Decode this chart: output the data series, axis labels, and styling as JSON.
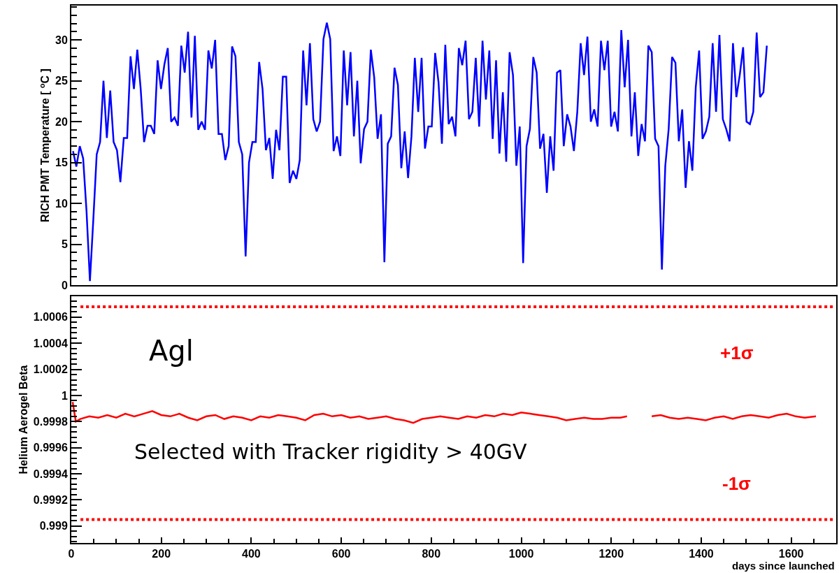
{
  "chart_data": [
    {
      "type": "line",
      "ylabel": "RICH PMT Temperature [ $^{o}$C ]",
      "categories": [
        null,
        null,
        null,
        null,
        null,
        null,
        null,
        null,
        null,
        null,
        null,
        null,
        null,
        null,
        null,
        null,
        null,
        null,
        null,
        null,
        null,
        null,
        null,
        null,
        null,
        null,
        null,
        null,
        null,
        null,
        null,
        null,
        null,
        null,
        null,
        null,
        null,
        null,
        null,
        null,
        null,
        null,
        null,
        null,
        null,
        null,
        null,
        null,
        null,
        null,
        null,
        null,
        null,
        null,
        null,
        null,
        null,
        null,
        null,
        null,
        null,
        null,
        null,
        null,
        null,
        null,
        null,
        null,
        null,
        null,
        null,
        null,
        null,
        null,
        null,
        null,
        null,
        null,
        null,
        null,
        null,
        null,
        null,
        null,
        null,
        null,
        null,
        null,
        null,
        null,
        null,
        null,
        null,
        null,
        null,
        null,
        null,
        null,
        null,
        null,
        null,
        null,
        null,
        null,
        null,
        null,
        null,
        null,
        null,
        null,
        null,
        null,
        null,
        null,
        null,
        null,
        null,
        null,
        null,
        null,
        null,
        null,
        null,
        null,
        null,
        null,
        null,
        null,
        null,
        null,
        null,
        null,
        null,
        null,
        null,
        null,
        null,
        null,
        null,
        null,
        null,
        null,
        null,
        null,
        null,
        null,
        null,
        null,
        null,
        null,
        null,
        null,
        null,
        null,
        null,
        null,
        null,
        null,
        null,
        null,
        null,
        null,
        null,
        null,
        null,
        null,
        null,
        null,
        null,
        null,
        null,
        null,
        null,
        null,
        null,
        null,
        null,
        null,
        null,
        null,
        null,
        null,
        null,
        null,
        null,
        null,
        null,
        null,
        null,
        null,
        null,
        null,
        null,
        null,
        null,
        null,
        null,
        null,
        null,
        null,
        null,
        null,
        null,
        null,
        null,
        null,
        null,
        null,
        null,
        null,
        null,
        null,
        null,
        null,
        null,
        null,
        null,
        null,
        null,
        null,
        null,
        null,
        null,
        null,
        null,
        null
      ],
      "ylim": [
        0,
        34.2
      ],
      "yticks": [
        0,
        5,
        10,
        15,
        20,
        25,
        30
      ],
      "tick_labels": "y",
      "marker": "none",
      "line_style": "solid",
      "series": [
        {
          "color": "#0000ff",
          "values": [
            16.4,
            14.5,
            17.0,
            15.5,
            9,
            0.5,
            8,
            16,
            17.5,
            25,
            18,
            23.8,
            17.5,
            16.5,
            12.6,
            18,
            18,
            28,
            24,
            28.8,
            24,
            17.5,
            19.5,
            19.5,
            18.5,
            27.5,
            24,
            27,
            29,
            20,
            20.5,
            19.5,
            29.3,
            26,
            31,
            20.5,
            30.5,
            19,
            20,
            19,
            28.7,
            26.5,
            30,
            18.5,
            18.5,
            15.3,
            17,
            29.2,
            28,
            17.5,
            16,
            3.5,
            15,
            17.5,
            17.5,
            27.3,
            24,
            16.5,
            18,
            13,
            19,
            16.5,
            25.5,
            25.5,
            12.5,
            14,
            13,
            15.3,
            28.7,
            22,
            29.6,
            20.3,
            18.8,
            20,
            30.1,
            32.1,
            30.1,
            16.4,
            18.2,
            15.8,
            28.7,
            22,
            28.5,
            18.2,
            25,
            14.9,
            19.1,
            20,
            28.8,
            25.4,
            17.9,
            20.9,
            2.8,
            17.3,
            18.2,
            26.6,
            24.5,
            14.3,
            18.8,
            13.1,
            18.2,
            27.8,
            21.2,
            27.8,
            16.7,
            19.4,
            19.4,
            28.4,
            24.8,
            17.3,
            29.4,
            19.7,
            20.6,
            18.2,
            29,
            26.9,
            29.9,
            20.3,
            21.2,
            27.8,
            19.4,
            29.9,
            22.7,
            28.7,
            17.9,
            27.5,
            16.1,
            23.6,
            15.1,
            28.5,
            25.7,
            14.6,
            19.4,
            2.7,
            17,
            19.1,
            27.9,
            26,
            16.7,
            18.5,
            11.3,
            18.2,
            14,
            26,
            26.3,
            17,
            20.9,
            19.4,
            16.4,
            21.2,
            29.6,
            25.7,
            30.4,
            20,
            21.5,
            19.4,
            29.9,
            26.3,
            29.9,
            19.4,
            21.2,
            18.8,
            31.2,
            24.2,
            30,
            18.2,
            23.6,
            15.8,
            19.7,
            17.6,
            29.3,
            28.5,
            17.9,
            17,
            1.9,
            14.6,
            19.1,
            27.9,
            27.2,
            17.6,
            21.5,
            11.9,
            17.6,
            14,
            24.2,
            28.7,
            17.9,
            18.8,
            20.6,
            29.6,
            21.2,
            30.6,
            20.3,
            19.1,
            17.6,
            29.6,
            23,
            25.7,
            29.1,
            20,
            19.7,
            21.2,
            30.9,
            23,
            23.6,
            29.3,
            null,
            null,
            null,
            null,
            null,
            null,
            null,
            null,
            null,
            null,
            null,
            null,
            null,
            null,
            null,
            null,
            null,
            null,
            null,
            null
          ]
        }
      ]
    },
    {
      "type": "line",
      "ylabel": "Helium Aerogel Beta",
      "xlabel": "days since launched",
      "xlim": [
        0,
        1700
      ],
      "xticks": [
        0,
        200,
        400,
        600,
        800,
        1000,
        1200,
        1400,
        1600
      ],
      "ylim": [
        0.99887,
        1.00076
      ],
      "yticks": [
        0.999,
        0.9992,
        0.9994,
        0.9996,
        0.9998,
        1,
        1.0002,
        1.0004,
        1.0006
      ],
      "marker": "none",
      "line_style": "solid",
      "annotations": [
        "Agl",
        "Selected with Tracker rigidity > 40GV"
      ],
      "ref_lines": [
        {
          "axis": "y",
          "value": 1.00068,
          "label": "+1σ",
          "color": "#ff0000",
          "line_style": "dotted"
        },
        {
          "axis": "y",
          "value": 0.99905,
          "label": "-1σ",
          "color": "#ff0000",
          "line_style": "dotted"
        }
      ],
      "series": [
        {
          "color": "#ff0000",
          "x": [
            3,
            10,
            20,
            40,
            60,
            80,
            100,
            120,
            140,
            160,
            180,
            200,
            220,
            240,
            260,
            280,
            300,
            320,
            340,
            360,
            380,
            400,
            420,
            440,
            460,
            480,
            500,
            520,
            540,
            560,
            580,
            600,
            620,
            640,
            660,
            680,
            700,
            720,
            740,
            760,
            780,
            800,
            820,
            840,
            860,
            880,
            900,
            920,
            940,
            960,
            980,
            1000,
            1020,
            1040,
            1060,
            1080,
            1100,
            1120,
            1140,
            1160,
            1180,
            1200,
            1220,
            1235,
            1260,
            1290,
            1310,
            1330,
            1350,
            1370,
            1390,
            1410,
            1430,
            1450,
            1470,
            1490,
            1510,
            1530,
            1550,
            1570,
            1590,
            1610,
            1630,
            1655
          ],
          "values": [
            0.99995,
            0.9998,
            0.99982,
            0.99984,
            0.99983,
            0.99985,
            0.99983,
            0.99986,
            0.99984,
            0.99986,
            0.99988,
            0.99985,
            0.99984,
            0.99986,
            0.99983,
            0.99981,
            0.99984,
            0.99985,
            0.99982,
            0.99984,
            0.99983,
            0.99981,
            0.99984,
            0.99983,
            0.99985,
            0.99984,
            0.99983,
            0.99981,
            0.99985,
            0.99986,
            0.99984,
            0.99985,
            0.99983,
            0.99984,
            0.99982,
            0.99983,
            0.99984,
            0.99982,
            0.99981,
            0.99979,
            0.99982,
            0.99983,
            0.99984,
            0.99983,
            0.99982,
            0.99984,
            0.99983,
            0.99985,
            0.99984,
            0.99986,
            0.99985,
            0.99987,
            0.99986,
            0.99985,
            0.99984,
            0.99983,
            0.99981,
            0.99982,
            0.99983,
            0.99982,
            0.99982,
            0.99983,
            0.99983,
            0.99984,
            null,
            0.99984,
            0.99985,
            0.99983,
            0.99982,
            0.99983,
            0.99982,
            0.99981,
            0.99983,
            0.99984,
            0.99982,
            0.99984,
            0.99985,
            0.99984,
            0.99983,
            0.99985,
            0.99986,
            0.99984,
            0.99983,
            0.99984
          ]
        }
      ]
    }
  ]
}
